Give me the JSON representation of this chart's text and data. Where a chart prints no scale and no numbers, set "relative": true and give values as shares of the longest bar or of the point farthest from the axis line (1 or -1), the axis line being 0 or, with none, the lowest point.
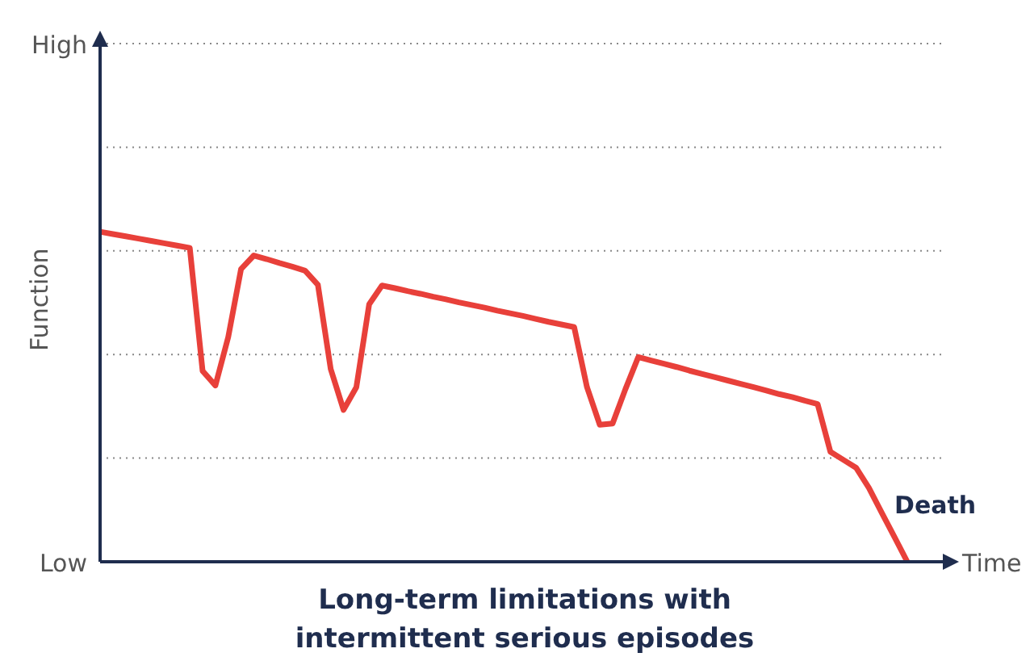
{
  "chart_data": {
    "type": "line",
    "title": "Long-term limitations with intermittent serious episodes",
    "xlabel": "Time",
    "ylabel": "Function",
    "relative": true,
    "categories": [
      null,
      null,
      null,
      null,
      null,
      null,
      null,
      null,
      null,
      null,
      null,
      null,
      null,
      null,
      null,
      null,
      null,
      null,
      null,
      null,
      null,
      null,
      null,
      null,
      null,
      null,
      null,
      null,
      null,
      null,
      null,
      null,
      null,
      null,
      null,
      null,
      null,
      null,
      null,
      null,
      null,
      null,
      null,
      null,
      null,
      null,
      null,
      null,
      null,
      null,
      null,
      null,
      null,
      null,
      null,
      null,
      null,
      null,
      null,
      null,
      null,
      null,
      null,
      null
    ],
    "series": [
      {
        "color": "#e8403a",
        "values": [
          1,
          0.993,
          0.986,
          0.979,
          0.972,
          0.965,
          0.958,
          0.951,
          0.578,
          0.534,
          0.681,
          0.887,
          0.928,
          0.917,
          0.905,
          0.894,
          0.882,
          0.839,
          0.584,
          0.46,
          0.529,
          0.78,
          0.837,
          0.829,
          0.82,
          0.812,
          0.803,
          0.795,
          0.786,
          0.778,
          0.77,
          0.761,
          0.753,
          0.745,
          0.736,
          0.727,
          0.719,
          0.711,
          0.529,
          0.415,
          0.419,
          0.523,
          0.62,
          0.61,
          0.6,
          0.59,
          0.579,
          0.569,
          0.559,
          0.549,
          0.539,
          0.529,
          0.519,
          0.508,
          0.499,
          0.488,
          0.478,
          0.333,
          0.309,
          0.285,
          0.224,
          0.149,
          0.075,
          0
        ]
      }
    ],
    "grid": "y",
    "marker": "none",
    "line_style": "solid",
    "annotations": [
      "High",
      "Low",
      "Death"
    ]
  }
}
